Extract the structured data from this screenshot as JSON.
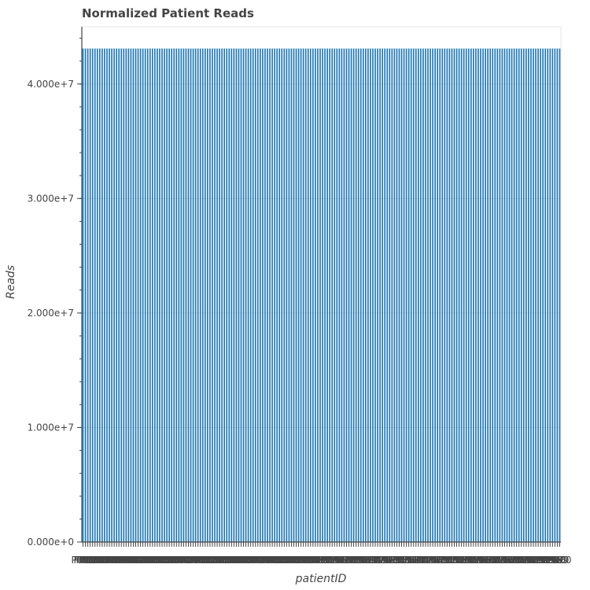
{
  "chart_data": {
    "type": "bar",
    "title": "Normalized Patient Reads",
    "xlabel": "patientID",
    "ylabel": "Reads",
    "ylim": [
      0,
      45000000
    ],
    "yticks": [
      0,
      10000000,
      20000000,
      30000000,
      40000000
    ],
    "ytick_labels": [
      "0.000e+0",
      "1.000e+7",
      "2.000e+7",
      "3.000e+7",
      "4.000e+7"
    ],
    "categories": [
      "P001",
      "P002",
      "P003",
      "P004",
      "P005",
      "P006",
      "P007",
      "P008",
      "P009",
      "P010",
      "P011",
      "P012",
      "P013",
      "P014",
      "P015",
      "P016",
      "P017",
      "P018",
      "P019",
      "P020",
      "P021",
      "P022",
      "P023",
      "P024",
      "P025",
      "P026",
      "P027",
      "P028",
      "P029",
      "P030",
      "P031",
      "P032",
      "P033",
      "P034",
      "P035",
      "P036",
      "P037",
      "P038",
      "P039",
      "P040",
      "P041",
      "P042",
      "P043",
      "P044",
      "P045",
      "P046",
      "P047",
      "P048",
      "P049",
      "P050",
      "P051",
      "P052",
      "P053",
      "P054",
      "P055",
      "P056",
      "P057",
      "P058",
      "P059",
      "P060",
      "P061",
      "P062",
      "P063",
      "P064",
      "P065",
      "P066",
      "P067",
      "P068",
      "P069",
      "P070",
      "P071",
      "P072",
      "P073",
      "P074",
      "P075",
      "P076",
      "P077",
      "P078",
      "P079",
      "P080",
      "P081",
      "P082",
      "P083",
      "P084",
      "P085",
      "P086",
      "P087",
      "P088",
      "P089",
      "P090",
      "P091",
      "P092",
      "P093",
      "P094",
      "P095",
      "P096",
      "P097",
      "P098",
      "P099",
      "P100",
      "P101",
      "P102",
      "P103",
      "P104",
      "P105",
      "P106",
      "P107",
      "P108",
      "P109",
      "P110",
      "P111",
      "P112",
      "P113",
      "P114",
      "P115",
      "P116",
      "P117",
      "P118",
      "P119",
      "P120",
      "P121",
      "P122",
      "P123",
      "P124",
      "P125",
      "P126",
      "P127",
      "P128",
      "P129",
      "P130",
      "P131",
      "P132",
      "P133",
      "P134",
      "P135",
      "P136",
      "P137",
      "P138",
      "P139",
      "P140",
      "P141",
      "P142",
      "P143",
      "P144",
      "P145",
      "P146",
      "P147",
      "P148",
      "P149",
      "P150",
      "P151",
      "P152",
      "P153",
      "P154",
      "P155",
      "P156",
      "P157",
      "P158",
      "P159",
      "P160",
      "P161",
      "P162",
      "P163",
      "P164",
      "P165",
      "P166",
      "P167",
      "P168",
      "P169",
      "P170",
      "P171",
      "P172",
      "P173",
      "P174",
      "P175",
      "P176",
      "P177",
      "P178",
      "P179",
      "P180",
      "P181",
      "P182",
      "P183",
      "P184",
      "P185",
      "P186",
      "P187",
      "P188",
      "P189",
      "P190",
      "P191",
      "P192",
      "P193",
      "P194",
      "P195",
      "P196",
      "P197",
      "P198",
      "P199",
      "P200"
    ],
    "values": [
      43100000,
      43100000,
      43100000,
      43100000,
      43100000,
      43100000,
      43100000,
      43100000,
      43100000,
      43100000,
      43100000,
      43100000,
      43100000,
      43100000,
      43100000,
      43100000,
      43100000,
      43100000,
      43100000,
      43100000,
      43100000,
      43100000,
      43100000,
      43100000,
      43100000,
      43100000,
      43100000,
      43100000,
      43100000,
      43100000,
      43100000,
      43100000,
      43100000,
      43100000,
      43100000,
      43100000,
      43100000,
      43100000,
      43100000,
      43100000,
      43100000,
      43100000,
      43100000,
      43100000,
      43100000,
      43100000,
      43100000,
      43100000,
      43100000,
      43100000,
      43100000,
      43100000,
      43100000,
      43100000,
      43100000,
      43100000,
      43100000,
      43100000,
      43100000,
      43100000,
      43100000,
      43100000,
      43100000,
      43100000,
      43100000,
      43100000,
      43100000,
      43100000,
      43100000,
      43100000,
      43100000,
      43100000,
      43100000,
      43100000,
      43100000,
      43100000,
      43100000,
      43100000,
      43100000,
      43100000,
      43100000,
      43100000,
      43100000,
      43100000,
      43100000,
      43100000,
      43100000,
      43100000,
      43100000,
      43100000,
      43100000,
      43100000,
      43100000,
      43100000,
      43100000,
      43100000,
      43100000,
      43100000,
      43100000,
      43100000,
      43100000,
      43100000,
      43100000,
      43100000,
      43100000,
      43100000,
      43100000,
      43100000,
      43100000,
      43100000,
      43100000,
      43100000,
      43100000,
      43100000,
      43100000,
      43100000,
      43100000,
      43100000,
      43100000,
      43100000,
      43100000,
      43100000,
      43100000,
      43100000,
      43100000,
      43100000,
      43100000,
      43100000,
      43100000,
      43100000,
      43100000,
      43100000,
      43100000,
      43100000,
      43100000,
      43100000,
      43100000,
      43100000,
      43100000,
      43100000,
      43100000,
      43100000,
      43100000,
      43100000,
      43100000,
      43100000,
      43100000,
      43100000,
      43100000,
      43100000,
      43100000,
      43100000,
      43100000,
      43100000,
      43100000,
      43100000,
      43100000,
      43100000,
      43100000,
      43100000,
      43100000,
      43100000,
      43100000,
      43100000,
      43100000,
      43100000,
      43100000,
      43100000,
      43100000,
      43100000,
      43100000,
      43100000,
      43100000,
      43100000,
      43100000,
      43100000,
      43100000,
      43100000,
      43100000,
      43100000,
      43100000,
      43100000,
      43100000,
      43100000,
      43100000,
      43100000,
      43100000,
      43100000,
      43100000,
      43100000,
      43100000,
      43100000,
      43100000,
      43100000,
      43100000,
      43100000,
      43100000,
      43100000,
      43100000,
      43100000
    ],
    "bar_color": "#1f77b4",
    "grid": true,
    "legend": "none"
  }
}
